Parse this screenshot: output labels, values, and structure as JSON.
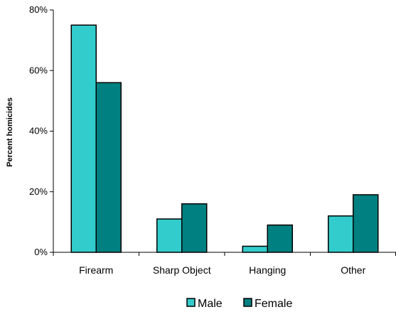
{
  "chart_data": {
    "type": "bar",
    "title": "",
    "xlabel": "",
    "ylabel": "Percent homicides",
    "categories": [
      "Firearm",
      "Sharp Object",
      "Hanging",
      "Other"
    ],
    "series": [
      {
        "name": "Male",
        "values": [
          75,
          11,
          2,
          12
        ],
        "color": "#33cccc"
      },
      {
        "name": "Female",
        "values": [
          56,
          16,
          9,
          19
        ],
        "color": "#008080"
      }
    ],
    "ylim": [
      0,
      80
    ],
    "yticks": [
      0,
      20,
      40,
      60,
      80
    ],
    "ytick_labels": [
      "0%",
      "20%",
      "40%",
      "60%",
      "80%"
    ],
    "grid": false,
    "legend_position": "bottom"
  }
}
